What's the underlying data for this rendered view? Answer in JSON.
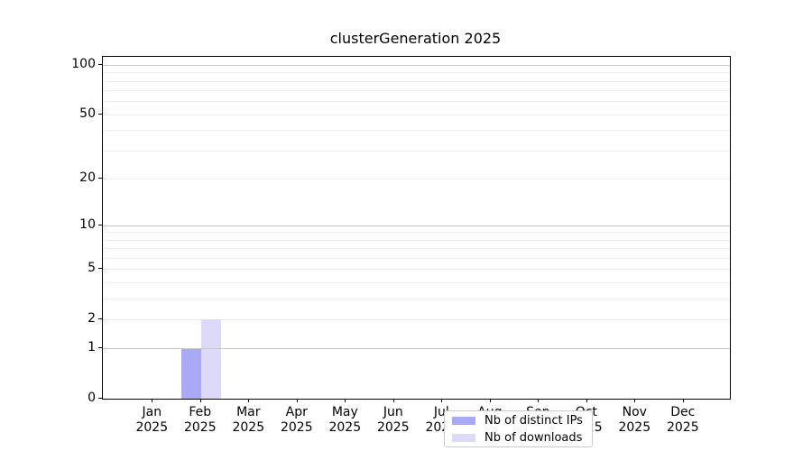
{
  "title": "clusterGeneration 2025",
  "colors": {
    "background": "#ffffff",
    "spine": "#000000",
    "text": "#000000",
    "grid_major": "#c8c8c8",
    "grid_minor": "#ececec",
    "legend_border": "#c9c9c9",
    "bar_distinct_ips": "#a9a9f6",
    "bar_downloads": "#dbdbf9"
  },
  "chart_data": {
    "type": "bar",
    "title": "clusterGeneration 2025",
    "categories": [
      "Jan",
      "Feb",
      "Mar",
      "Apr",
      "May",
      "Jun",
      "Jul",
      "Aug",
      "Sep",
      "Oct",
      "Nov",
      "Dec"
    ],
    "year_label": "2025",
    "x_tick_labels": [
      "Jan 2025",
      "Feb 2025",
      "Mar 2025",
      "Apr 2025",
      "May 2025",
      "Jun 2025",
      "Jul 2025",
      "Aug 2025",
      "Sep 2025",
      "Oct 2025",
      "Nov 2025",
      "Dec 2025"
    ],
    "series": [
      {
        "name": "Nb of distinct IPs",
        "color": "#a9a9f6",
        "values": [
          0,
          1,
          0,
          0,
          0,
          0,
          0,
          0,
          0,
          0,
          0,
          0
        ]
      },
      {
        "name": "Nb of downloads",
        "color": "#dbdbf9",
        "values": [
          0,
          2,
          0,
          0,
          0,
          0,
          0,
          0,
          0,
          0,
          0,
          0
        ]
      }
    ],
    "y_axis": {
      "scale": "log10(1+x)",
      "tick_labels": [
        "100",
        "50",
        "20",
        "10",
        "5",
        "2",
        "1",
        "0"
      ],
      "tick_values": [
        100,
        50,
        20,
        10,
        5,
        2,
        1,
        0
      ],
      "major_grid_values": [
        1,
        10,
        100
      ],
      "minor_grid_values": [
        2,
        3,
        4,
        5,
        6,
        7,
        8,
        9,
        20,
        30,
        40,
        50,
        60,
        70,
        80,
        90
      ],
      "ylim": [
        0,
        112
      ]
    },
    "grid": true,
    "legend_position": "lower center"
  }
}
